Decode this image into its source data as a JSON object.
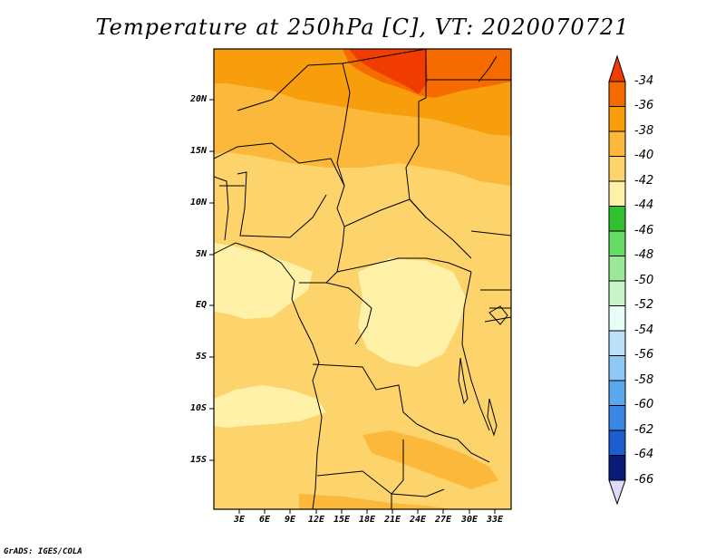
{
  "title": "Temperature at 250hPa [C], VT: 2020070721",
  "credit": "GrADS: IGES/COLA",
  "lat_ticks": [
    "20N",
    "15N",
    "10N",
    "5N",
    "EQ",
    "5S",
    "10S",
    "15S"
  ],
  "lon_ticks": [
    "3E",
    "6E",
    "9E",
    "12E",
    "15E",
    "18E",
    "21E",
    "24E",
    "27E",
    "30E",
    "33E"
  ],
  "colorbar": {
    "labels": [
      "-34",
      "-36",
      "-38",
      "-40",
      "-42",
      "-44",
      "-46",
      "-48",
      "-50",
      "-52",
      "-54",
      "-56",
      "-58",
      "-60",
      "-62",
      "-64",
      "-66"
    ],
    "colors": [
      "#f03c00",
      "#f66b00",
      "#f89d0b",
      "#fbb83a",
      "#fcd46b",
      "#fff2a8",
      "#30c030",
      "#66db66",
      "#9be89b",
      "#c8f5c8",
      "#e8fff8",
      "#bce0fa",
      "#8fc8f5",
      "#5aa8ee",
      "#3a86e4",
      "#1d5dd0",
      "#0e3fa8",
      "#0a1a78",
      "#dcdcf8"
    ]
  },
  "field_colors": {
    "c34": "#f03c00",
    "c36": "#f66b00",
    "c38": "#f89d0b",
    "c40": "#fbb83a",
    "c42": "#fcd46b",
    "c44": "#fff2a8"
  }
}
